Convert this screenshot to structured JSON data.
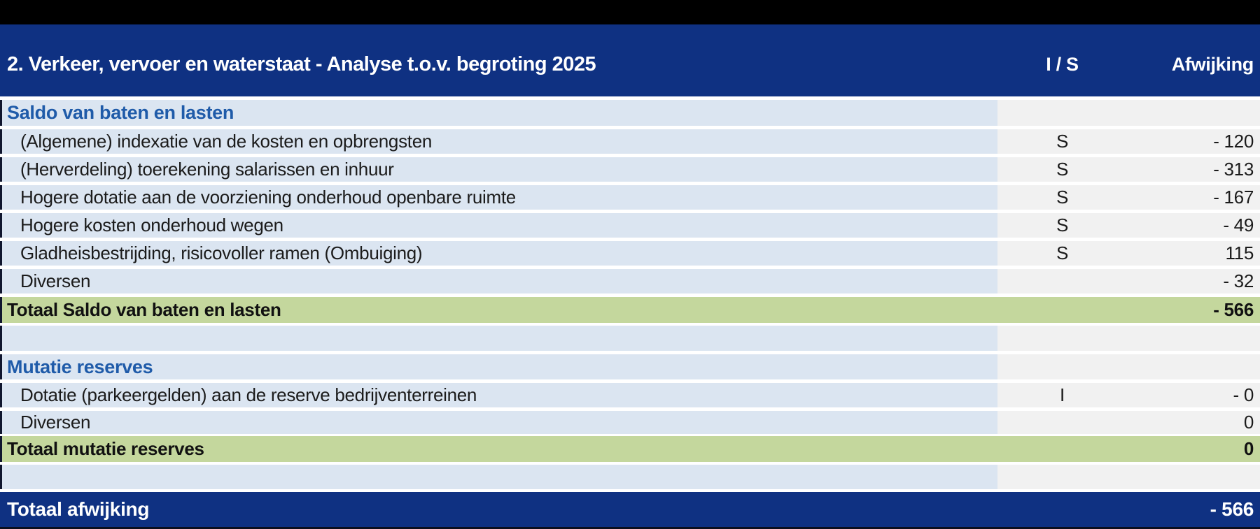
{
  "colors": {
    "top_bar": "#000000",
    "dark_blue": "#0f3182",
    "light_blue_row": "#dbe5f1",
    "right_column_gray": "#f1f1f1",
    "total_green": "#c4d79d",
    "section_title_text": "#1f5ba9"
  },
  "header": {
    "title": "2. Verkeer, vervoer en waterstaat - Analyse t.o.v. begroting 2025",
    "is_label": "I / S",
    "afwijking_label": "Afwijking"
  },
  "sections": [
    {
      "title": "Saldo van baten en lasten",
      "rows": [
        {
          "label": "(Algemene) indexatie van de kosten en opbrengsten",
          "is": "S",
          "value": "- 120"
        },
        {
          "label": "(Herverdeling) toerekening salarissen en inhuur",
          "is": "S",
          "value": "- 313"
        },
        {
          "label": "Hogere dotatie aan de voorziening onderhoud openbare ruimte",
          "is": "S",
          "value": "- 167"
        },
        {
          "label": "Hogere kosten onderhoud wegen",
          "is": "S",
          "value": "- 49"
        },
        {
          "label": "Gladheisbestrijding, risicovoller ramen (Ombuiging)",
          "is": "S",
          "value": "115"
        },
        {
          "label": "Diversen",
          "is": "",
          "value": "- 32"
        }
      ],
      "total": {
        "label": "Totaal Saldo van baten en lasten",
        "value": "- 566"
      }
    },
    {
      "title": "Mutatie reserves",
      "rows": [
        {
          "label": "Dotatie (parkeergelden) aan de reserve bedrijventerreinen",
          "is": "I",
          "value": "- 0"
        },
        {
          "label": "Diversen",
          "is": "",
          "value": "0"
        }
      ],
      "total": {
        "label": "Totaal mutatie reserves",
        "value": "0"
      }
    }
  ],
  "grand_total": {
    "label": "Totaal afwijking",
    "value": "- 566"
  }
}
